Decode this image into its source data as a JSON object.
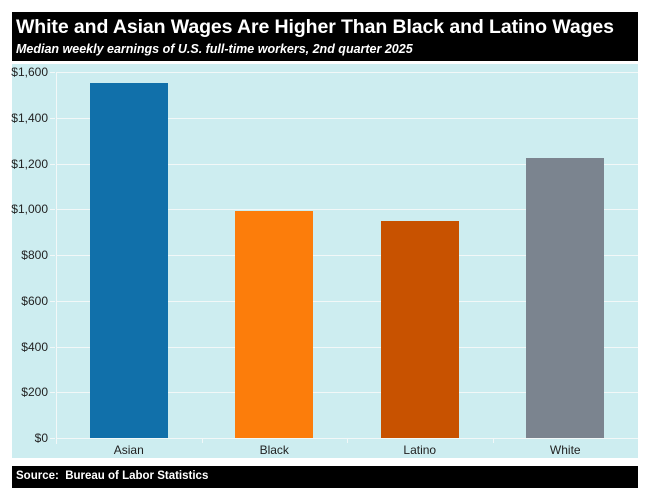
{
  "header": {
    "title": "White and Asian Wages Are Higher Than Black and Latino Wages",
    "subtitle": "Median weekly earnings of U.S. full-time workers, 2nd quarter 2025"
  },
  "footer": {
    "source": "Source:  Bureau of Labor Statistics"
  },
  "colors": {
    "background": "#cdedf0",
    "asian": "#1170aa",
    "black": "#fc7d0b",
    "latino": "#c85200",
    "white": "#7b848f"
  },
  "y_ticks": [
    "$0",
    "$200",
    "$400",
    "$600",
    "$800",
    "$1,000",
    "$1,200",
    "$1,400",
    "$1,600"
  ],
  "chart_data": {
    "type": "bar",
    "title": "White and Asian Wages Are Higher Than Black and Latino Wages",
    "subtitle": "Median weekly earnings of U.S. full-time workers, 2nd quarter 2025",
    "categories": [
      "Asian",
      "Black",
      "Latino",
      "White"
    ],
    "values": [
      1552,
      991,
      948,
      1226
    ],
    "bar_colors": [
      "#1170aa",
      "#fc7d0b",
      "#c85200",
      "#7b848f"
    ],
    "xlabel": "",
    "ylabel": "",
    "ylim": [
      0,
      1600
    ],
    "y_tick_values": [
      0,
      200,
      400,
      600,
      800,
      1000,
      1200,
      1400,
      1600
    ],
    "y_tick_format": "currency_usd",
    "grid": true,
    "legend": "none",
    "source": "Source:  Bureau of Labor Statistics"
  }
}
